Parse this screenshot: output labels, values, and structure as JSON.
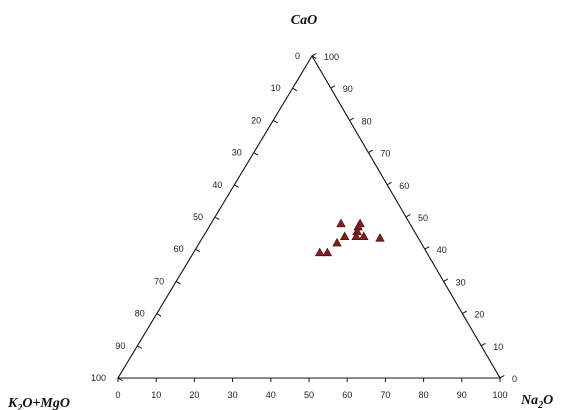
{
  "chart_data": {
    "type": "scatter",
    "subtype": "ternary",
    "axes": {
      "top": "CaO",
      "left": "K2O+MgO",
      "right": "Na2O"
    },
    "ticks": [
      0,
      10,
      20,
      30,
      40,
      50,
      60,
      70,
      80,
      90,
      100
    ],
    "tick_labels": [
      "0",
      "10",
      "20",
      "30",
      "40",
      "50",
      "60",
      "70",
      "80",
      "90",
      "100"
    ],
    "marker": {
      "shape": "triangle",
      "color": "#8b1a1a"
    },
    "points": [
      {
        "CaO": 0.48,
        "Na2O": 0.34,
        "K2O+MgO": 0.18
      },
      {
        "CaO": 0.48,
        "Na2O": 0.39,
        "K2O+MgO": 0.13
      },
      {
        "CaO": 0.47,
        "Na2O": 0.39,
        "K2O+MgO": 0.14
      },
      {
        "CaO": 0.455,
        "Na2O": 0.395,
        "K2O+MgO": 0.15
      },
      {
        "CaO": 0.44,
        "Na2O": 0.37,
        "K2O+MgO": 0.19
      },
      {
        "CaO": 0.44,
        "Na2O": 0.4,
        "K2O+MgO": 0.16
      },
      {
        "CaO": 0.44,
        "Na2O": 0.42,
        "K2O+MgO": 0.14
      },
      {
        "CaO": 0.435,
        "Na2O": 0.465,
        "K2O+MgO": 0.1
      },
      {
        "CaO": 0.42,
        "Na2O": 0.36,
        "K2O+MgO": 0.22
      },
      {
        "CaO": 0.39,
        "Na2O": 0.33,
        "K2O+MgO": 0.28
      },
      {
        "CaO": 0.39,
        "Na2O": 0.35,
        "K2O+MgO": 0.26
      }
    ],
    "grid": false,
    "legend": "none"
  }
}
